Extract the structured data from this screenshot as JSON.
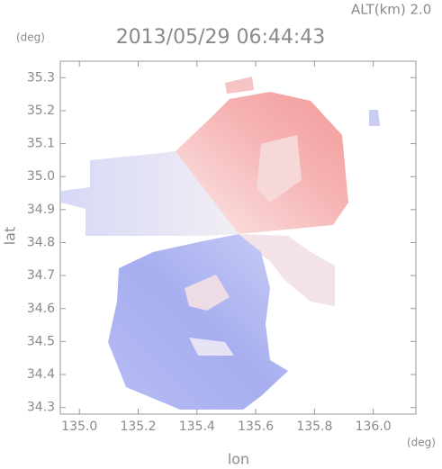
{
  "chart_data": {
    "type": "radar-map",
    "title": "2013/05/29 06:44:43",
    "annotation": "ALT(km) 2.0",
    "xlabel": "lon",
    "ylabel": "lat",
    "xunit": "(deg)",
    "yunit": "(deg)",
    "xlim": [
      134.935,
      136.145
    ],
    "ylim": [
      34.28,
      35.35
    ],
    "xticks": [
      {
        "value": 135,
        "label": "135.0"
      },
      135.2,
      135.4,
      135.6,
      135.8,
      {
        "value": 136,
        "label": "136.0"
      }
    ],
    "yticks": [
      34.3,
      34.4,
      34.5,
      34.6,
      34.7,
      34.8,
      34.9,
      {
        "value": 35,
        "label": "35.0"
      },
      35.1,
      35.2,
      35.3
    ]
  }
}
